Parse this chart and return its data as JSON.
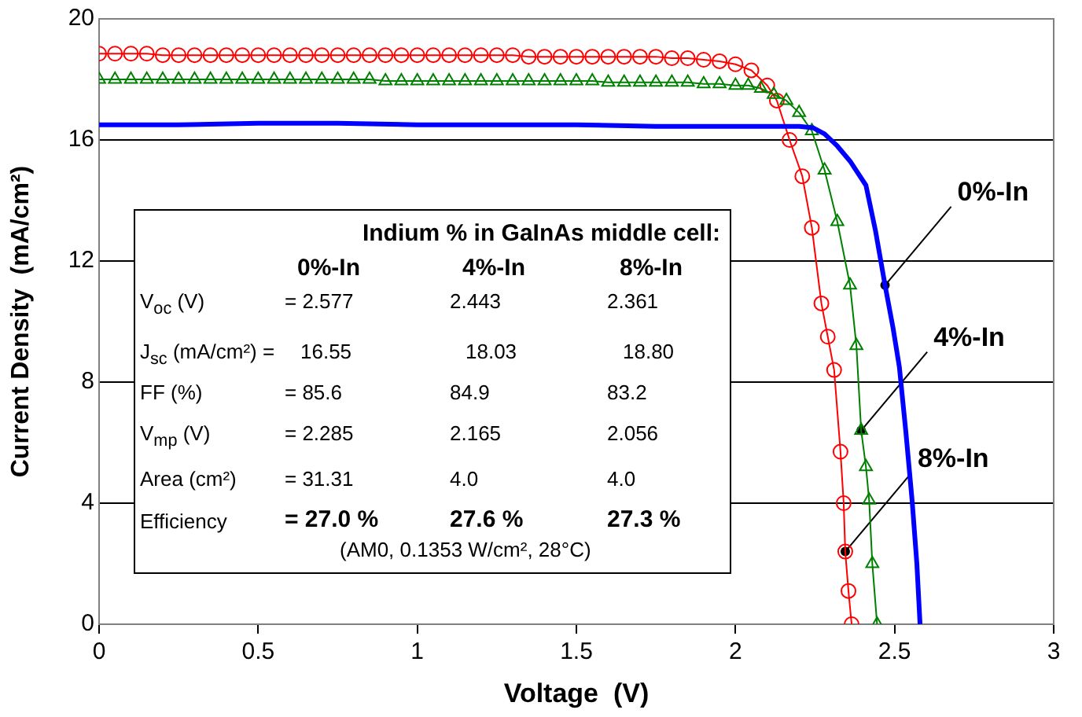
{
  "chart_data": {
    "type": "line",
    "xlabel": "Voltage  (V)",
    "ylabel": "Current Density  (mA/cm²)",
    "xlim": [
      0,
      3
    ],
    "xticks": [
      0,
      0.5,
      1,
      1.5,
      2,
      2.5,
      3
    ],
    "ylim": [
      0,
      20
    ],
    "yticks": [
      0,
      4,
      8,
      12,
      16,
      20
    ],
    "grid": "y",
    "legend": false,
    "line_style": "solid",
    "series": [
      {
        "color": "#0000ff",
        "marker": "none",
        "x": [
          0,
          0.25,
          0.5,
          0.75,
          1,
          1.25,
          1.5,
          1.75,
          2,
          2.1,
          2.2,
          2.244,
          2.28,
          2.32,
          2.36,
          2.41,
          2.44,
          2.47,
          2.495,
          2.515,
          2.535,
          2.555,
          2.57,
          2.58
        ],
        "values": [
          16.5,
          16.5,
          16.55,
          16.55,
          16.5,
          16.5,
          16.5,
          16.45,
          16.45,
          16.45,
          16.45,
          16.4,
          16.2,
          15.8,
          15.3,
          14.5,
          13.0,
          11.2,
          9.8,
          8.5,
          6.4,
          4.1,
          2.0,
          0
        ]
      },
      {
        "color": "#008000",
        "marker": "triangle",
        "x": [
          0,
          0.05,
          0.1,
          0.15,
          0.2,
          0.25,
          0.3,
          0.35,
          0.4,
          0.45,
          0.5,
          0.55,
          0.6,
          0.65,
          0.7,
          0.75,
          0.8,
          0.85,
          0.9,
          0.95,
          1,
          1.05,
          1.1,
          1.15,
          1.2,
          1.25,
          1.3,
          1.35,
          1.4,
          1.45,
          1.5,
          1.55,
          1.6,
          1.65,
          1.7,
          1.75,
          1.8,
          1.85,
          1.9,
          1.95,
          2,
          2.04,
          2.08,
          2.12,
          2.16,
          2.2,
          2.24,
          2.28,
          2.32,
          2.36,
          2.38,
          2.395,
          2.41,
          2.42,
          2.43,
          2.445
        ],
        "values": [
          18.0,
          18.0,
          18.0,
          18.0,
          18.0,
          18.0,
          18.0,
          18.0,
          18.0,
          18.0,
          18.0,
          18.0,
          18.0,
          18.0,
          18.0,
          18.0,
          18.0,
          18.0,
          17.95,
          17.95,
          17.95,
          17.95,
          17.95,
          17.95,
          17.95,
          17.95,
          17.95,
          17.95,
          17.95,
          17.95,
          17.95,
          17.95,
          17.9,
          17.9,
          17.9,
          17.9,
          17.9,
          17.9,
          17.85,
          17.85,
          17.8,
          17.8,
          17.7,
          17.5,
          17.3,
          16.9,
          16.3,
          15.0,
          13.3,
          11.2,
          9.2,
          6.4,
          5.2,
          4.1,
          2.0,
          0
        ]
      },
      {
        "color": "#ff0000",
        "marker": "circle",
        "x": [
          0,
          0.05,
          0.1,
          0.15,
          0.2,
          0.25,
          0.3,
          0.35,
          0.4,
          0.45,
          0.5,
          0.55,
          0.6,
          0.65,
          0.7,
          0.75,
          0.8,
          0.85,
          0.9,
          0.95,
          1,
          1.05,
          1.1,
          1.15,
          1.2,
          1.25,
          1.3,
          1.35,
          1.4,
          1.45,
          1.5,
          1.55,
          1.6,
          1.65,
          1.7,
          1.75,
          1.8,
          1.85,
          1.9,
          1.95,
          2,
          2.05,
          2.1,
          2.13,
          2.17,
          2.21,
          2.24,
          2.27,
          2.29,
          2.31,
          2.33,
          2.34,
          2.345,
          2.355,
          2.365
        ],
        "values": [
          18.85,
          18.85,
          18.85,
          18.85,
          18.8,
          18.8,
          18.8,
          18.8,
          18.8,
          18.8,
          18.8,
          18.8,
          18.8,
          18.8,
          18.8,
          18.8,
          18.8,
          18.8,
          18.8,
          18.8,
          18.8,
          18.8,
          18.8,
          18.8,
          18.8,
          18.8,
          18.8,
          18.75,
          18.75,
          18.75,
          18.75,
          18.75,
          18.75,
          18.75,
          18.75,
          18.75,
          18.7,
          18.7,
          18.65,
          18.6,
          18.5,
          18.3,
          17.8,
          17.3,
          16.0,
          14.8,
          13.1,
          10.6,
          9.5,
          8.4,
          5.7,
          4.0,
          2.4,
          1.1,
          0
        ]
      }
    ],
    "annotations": [
      {
        "text": "0%-In",
        "x": 2.47,
        "y": 11.2
      },
      {
        "text": "4%-In",
        "x": 2.395,
        "y": 6.4
      },
      {
        "text": "8%-In",
        "x": 2.345,
        "y": 2.4
      },
      "Indium % in GaInAs middle cell:",
      "0%-In",
      "4%-In",
      "8%-In",
      "V$_{oc}$  (V)",
      "= 2.577",
      "2.443",
      "2.361",
      "J$_{sc}$  (mA/cm²) =",
      "16.55",
      "18.03",
      "18.80",
      "FF  (%)",
      "= 85.6",
      "84.9",
      "83.2",
      "V$_{mp}$  (V)",
      "= 2.285",
      "2.165",
      "2.056",
      "Area  (cm²)",
      "= 31.31",
      "4.0",
      "4.0",
      "Efficiency",
      "= 27.0 %",
      "27.6 %",
      "27.3 %",
      "(AM0, 0.1353 W/cm², 28°C)"
    ]
  }
}
